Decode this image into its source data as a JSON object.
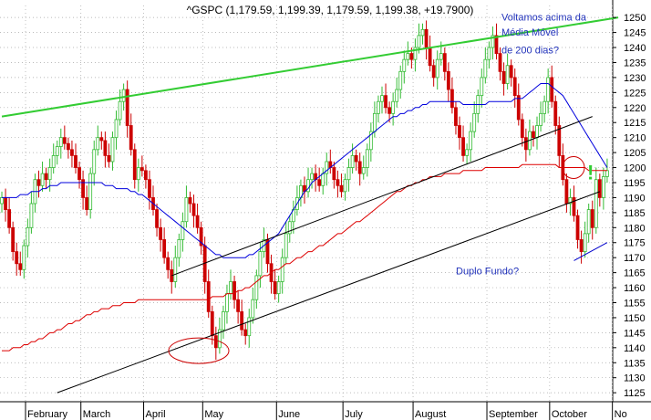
{
  "chart_data": {
    "type": "candlestick",
    "title": "^GSPC (1,179.59, 1,199.39, 1,179.59, 1,199.38, +19.7900)",
    "x_tick_labels": [
      "February",
      "March",
      "April",
      "May",
      "June",
      "July",
      "August",
      "September",
      "October",
      "No"
    ],
    "y_ticks": [
      1125,
      1130,
      1135,
      1140,
      1145,
      1150,
      1155,
      1160,
      1165,
      1170,
      1175,
      1180,
      1185,
      1190,
      1195,
      1200,
      1205,
      1210,
      1215,
      1220,
      1225,
      1230,
      1235,
      1240,
      1245,
      1250
    ],
    "y_tick_labels": [
      "1125",
      "1130",
      "1135",
      "1140",
      "1145",
      "1150",
      "1155",
      "1160",
      "1165",
      "1170",
      "1175",
      "1180",
      "1185",
      "1190",
      "1195",
      "1200",
      "1205",
      "1210",
      "1215",
      "1220",
      "1225",
      "1230",
      "1235",
      "1240",
      "1245",
      "1250"
    ],
    "ylim": [
      1122,
      1254
    ],
    "grid": true,
    "closes": [
      1190,
      1186,
      1180,
      1172,
      1168,
      1166,
      1174,
      1180,
      1188,
      1196,
      1194,
      1198,
      1196,
      1200,
      1204,
      1207,
      1210,
      1208,
      1206,
      1204,
      1200,
      1196,
      1190,
      1186,
      1198,
      1206,
      1210,
      1209,
      1204,
      1202,
      1210,
      1216,
      1222,
      1226,
      1214,
      1206,
      1196,
      1200,
      1199,
      1196,
      1190,
      1186,
      1180,
      1176,
      1170,
      1166,
      1162,
      1170,
      1176,
      1182,
      1190,
      1188,
      1184,
      1180,
      1174,
      1162,
      1152,
      1144,
      1140,
      1146,
      1152,
      1158,
      1162,
      1156,
      1152,
      1146,
      1144,
      1150,
      1156,
      1164,
      1172,
      1176,
      1168,
      1162,
      1158,
      1162,
      1170,
      1178,
      1182,
      1186,
      1190,
      1194,
      1192,
      1196,
      1198,
      1196,
      1194,
      1198,
      1202,
      1200,
      1196,
      1194,
      1192,
      1196,
      1200,
      1204,
      1202,
      1198,
      1200,
      1206,
      1212,
      1218,
      1222,
      1224,
      1220,
      1218,
      1222,
      1226,
      1232,
      1236,
      1238,
      1236,
      1240,
      1244,
      1246,
      1240,
      1234,
      1230,
      1236,
      1238,
      1232,
      1226,
      1220,
      1214,
      1210,
      1204,
      1206,
      1212,
      1218,
      1224,
      1230,
      1236,
      1240,
      1244,
      1238,
      1232,
      1228,
      1234,
      1230,
      1224,
      1216,
      1210,
      1206,
      1212,
      1210,
      1214,
      1218,
      1222,
      1230,
      1222,
      1214,
      1204,
      1196,
      1188,
      1190,
      1184,
      1176,
      1172,
      1178,
      1186,
      1180,
      1196,
      1190,
      1197,
      1199
    ],
    "series": [
      {
        "name": "",
        "color": "#0000dd",
        "values": [
          1190,
          1190,
          1190,
          1190,
          1190,
          1191,
          1191,
          1191,
          1192,
          1192,
          1192,
          1193,
          1193,
          1194,
          1194,
          1194,
          1195,
          1195,
          1195,
          1195,
          1195,
          1195,
          1195,
          1195,
          1195,
          1195,
          1195,
          1195,
          1194,
          1194,
          1194,
          1193,
          1193,
          1193,
          1193,
          1192,
          1192,
          1191,
          1191,
          1190,
          1189,
          1188,
          1187,
          1186,
          1185,
          1184,
          1183,
          1182,
          1181,
          1180,
          1179,
          1178,
          1177,
          1176,
          1175,
          1174,
          1173,
          1172,
          1171,
          1171,
          1170,
          1170,
          1170,
          1170,
          1170,
          1170,
          1170,
          1171,
          1171,
          1172,
          1173,
          1174,
          1175,
          1176,
          1177,
          1178,
          1180,
          1182,
          1184,
          1186,
          1188,
          1190,
          1192,
          1193,
          1195,
          1196,
          1197,
          1198,
          1199,
          1200,
          1201,
          1202,
          1203,
          1204,
          1205,
          1206,
          1207,
          1208,
          1209,
          1210,
          1211,
          1212,
          1213,
          1214,
          1215,
          1216,
          1217,
          1217,
          1218,
          1218,
          1219,
          1219,
          1220,
          1220,
          1221,
          1221,
          1222,
          1222,
          1222,
          1222,
          1222,
          1222,
          1222,
          1222,
          1222,
          1221,
          1221,
          1221,
          1221,
          1221,
          1221,
          1221,
          1222,
          1222,
          1222,
          1222,
          1222,
          1222,
          1222,
          1223,
          1223,
          1223,
          1224,
          1225,
          1226,
          1227,
          1228,
          1228,
          1228,
          1227,
          1226,
          1225,
          1224,
          1222,
          1220,
          1218,
          1216,
          1214,
          1212,
          1210,
          1208,
          1206,
          1204,
          1202,
          1200
        ]
      },
      {
        "name": "",
        "color": "#dd0000",
        "values": [
          1139,
          1139,
          1139,
          1140,
          1140,
          1140,
          1141,
          1141,
          1142,
          1142,
          1143,
          1143,
          1144,
          1145,
          1145,
          1146,
          1146,
          1147,
          1148,
          1148,
          1149,
          1149,
          1150,
          1151,
          1151,
          1152,
          1152,
          1153,
          1153,
          1153,
          1154,
          1154,
          1154,
          1155,
          1155,
          1155,
          1155,
          1156,
          1156,
          1156,
          1156,
          1156,
          1156,
          1156,
          1156,
          1156,
          1156,
          1156,
          1156,
          1156,
          1156,
          1156,
          1156,
          1156,
          1156,
          1156,
          1156,
          1157,
          1157,
          1157,
          1157,
          1158,
          1158,
          1158,
          1159,
          1159,
          1160,
          1160,
          1161,
          1162,
          1163,
          1164,
          1164,
          1165,
          1166,
          1166,
          1167,
          1168,
          1168,
          1169,
          1170,
          1170,
          1171,
          1172,
          1172,
          1173,
          1174,
          1174,
          1175,
          1176,
          1177,
          1178,
          1178,
          1179,
          1180,
          1181,
          1182,
          1182,
          1183,
          1184,
          1185,
          1186,
          1187,
          1188,
          1189,
          1190,
          1191,
          1192,
          1192,
          1193,
          1194,
          1194,
          1195,
          1195,
          1196,
          1196,
          1197,
          1197,
          1197,
          1197,
          1198,
          1198,
          1198,
          1198,
          1198,
          1199,
          1199,
          1199,
          1199,
          1199,
          1199,
          1200,
          1200,
          1200,
          1200,
          1200,
          1200,
          1200,
          1200,
          1200,
          1200,
          1201,
          1201,
          1201,
          1201,
          1201,
          1201,
          1201,
          1201,
          1201,
          1201,
          1200,
          1200,
          1200,
          1200,
          1200,
          1200,
          1200,
          1200,
          1199,
          1199,
          1199,
          1199,
          1199,
          1199
        ]
      }
    ],
    "trendlines": [
      {
        "color": "#33cc33",
        "x0": 0,
        "y0": 1217,
        "x1": 167,
        "y1": 1250
      },
      {
        "color": "#000000",
        "x0": 46,
        "y0": 1164,
        "x1": 160,
        "y1": 1217
      },
      {
        "color": "#000000",
        "x0": 15,
        "y0": 1125,
        "x1": 162,
        "y1": 1192
      },
      {
        "color": "#0000cc",
        "x0": 155,
        "y0": 1169,
        "x1": 164,
        "y1": 1175
      }
    ],
    "annotations": [
      {
        "lines": [
          "Voltamos acima da",
          "Média Móvel",
          "de 200 dias?"
        ]
      },
      {
        "lines": [
          "Duplo Fundo?"
        ]
      },
      {
        "lines": [
          "!"
        ]
      }
    ]
  }
}
